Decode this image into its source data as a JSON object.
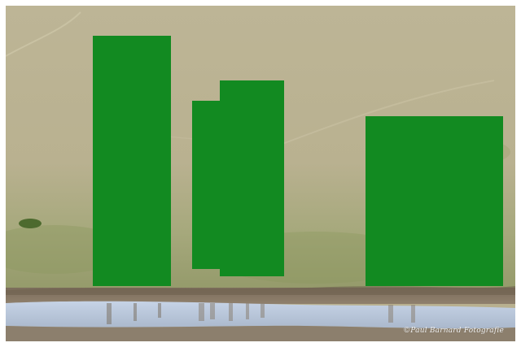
{
  "photo": {
    "watermark": "©Paul Barnard Fotografie"
  },
  "colors": {
    "frame": "#ffffff",
    "field": "#b9b192",
    "grass": "#8f9a63",
    "soil": "#8a7a66",
    "water": "#b9c8dd",
    "occluder": "#128a21"
  }
}
